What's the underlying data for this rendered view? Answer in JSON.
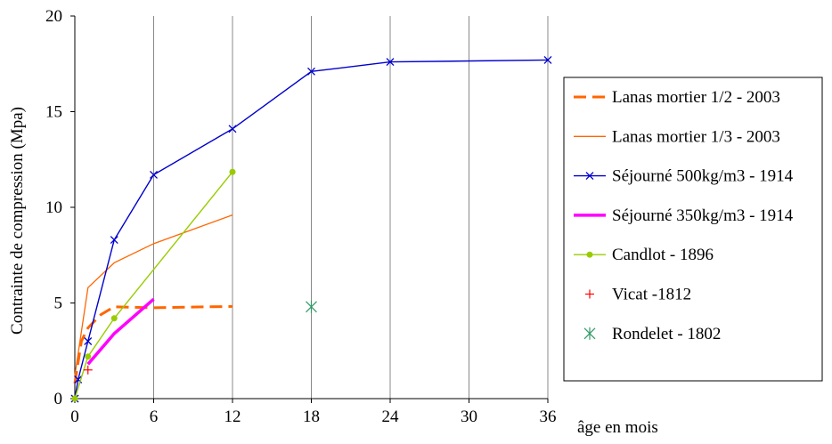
{
  "chart_data": {
    "type": "line",
    "xlabel": "âge en mois",
    "ylabel": "Contrainte de compression (Mpa)",
    "xlim": [
      0,
      36
    ],
    "ylim": [
      0,
      20
    ],
    "xticks": [
      0,
      6,
      12,
      18,
      24,
      30,
      36
    ],
    "yticks": [
      0,
      5,
      10,
      15,
      20
    ],
    "grid": "vertical",
    "legend_position": "right",
    "series": [
      {
        "name": "Lanas mortier 1/2 - 2003",
        "color": "#FF6600",
        "style": "dashed",
        "marker": "none",
        "points": [
          [
            0,
            0.8
          ],
          [
            0.5,
            3.0
          ],
          [
            1,
            3.7
          ],
          [
            2,
            4.4
          ],
          [
            3,
            4.8
          ],
          [
            6,
            4.75
          ],
          [
            12,
            4.82
          ]
        ]
      },
      {
        "name": "Lanas mortier 1/3 - 2003",
        "color": "#FF6600",
        "style": "thin",
        "marker": "none",
        "points": [
          [
            0,
            1.2
          ],
          [
            1,
            5.8
          ],
          [
            3,
            7.1
          ],
          [
            6,
            8.1
          ],
          [
            12,
            9.6
          ]
        ]
      },
      {
        "name": "Séjourné 500kg/m3 - 1914",
        "color": "#0000CC",
        "style": "solid",
        "marker": "x",
        "points": [
          [
            0,
            0
          ],
          [
            0.25,
            1.0
          ],
          [
            1,
            3.0
          ],
          [
            3,
            8.3
          ],
          [
            6,
            11.7
          ],
          [
            12,
            14.1
          ],
          [
            18,
            17.1
          ],
          [
            24,
            17.6
          ],
          [
            36,
            17.7
          ]
        ]
      },
      {
        "name": "Séjourné 350kg/m3 - 1914",
        "color": "#FF00FF",
        "style": "thick",
        "marker": "none",
        "points": [
          [
            1,
            1.8
          ],
          [
            3,
            3.4
          ],
          [
            6,
            5.2
          ]
        ]
      },
      {
        "name": "Candlot - 1896",
        "color": "#99CC00",
        "style": "solid",
        "marker": "dot",
        "points": [
          [
            0,
            0
          ],
          [
            1,
            2.2
          ],
          [
            3,
            4.2
          ],
          [
            12,
            11.85
          ]
        ]
      },
      {
        "name": "Vicat -1812",
        "color": "#FF0000",
        "style": "none",
        "marker": "plus",
        "points": [
          [
            1,
            1.5
          ]
        ]
      },
      {
        "name": "Rondelet - 1802",
        "color": "#339966",
        "style": "none",
        "marker": "asterisk",
        "points": [
          [
            18,
            4.8
          ]
        ]
      }
    ]
  }
}
